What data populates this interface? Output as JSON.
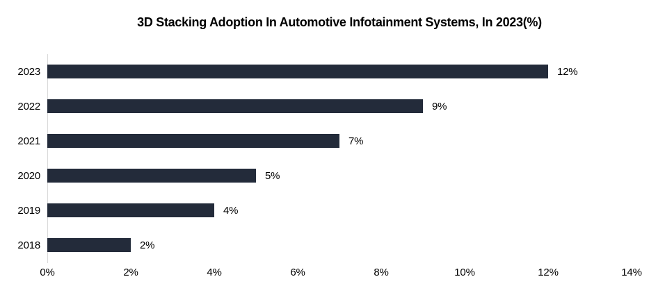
{
  "chart_data": {
    "type": "bar",
    "orientation": "horizontal",
    "title": "3D Stacking Adoption In Automotive Infotainment Systems, In 2023(%)",
    "categories": [
      "2023",
      "2022",
      "2021",
      "2020",
      "2019",
      "2018"
    ],
    "values": [
      12,
      9,
      7,
      5,
      4,
      2
    ],
    "value_labels": [
      "12%",
      "9%",
      "7%",
      "5%",
      "4%",
      "2%"
    ],
    "xlabel": "",
    "ylabel": "",
    "xlim": [
      0,
      14
    ],
    "x_ticks": [
      "0%",
      "2%",
      "4%",
      "6%",
      "8%",
      "10%",
      "12%",
      "14%"
    ],
    "x_tick_values": [
      0,
      2,
      4,
      6,
      8,
      10,
      12,
      14
    ],
    "grid": false,
    "legend": false,
    "data_labels_shown": true,
    "colors": {
      "bar": "#232B3A",
      "axis_line": "#D9D9D9",
      "text": "#000000",
      "background": "#FFFFFF"
    }
  }
}
